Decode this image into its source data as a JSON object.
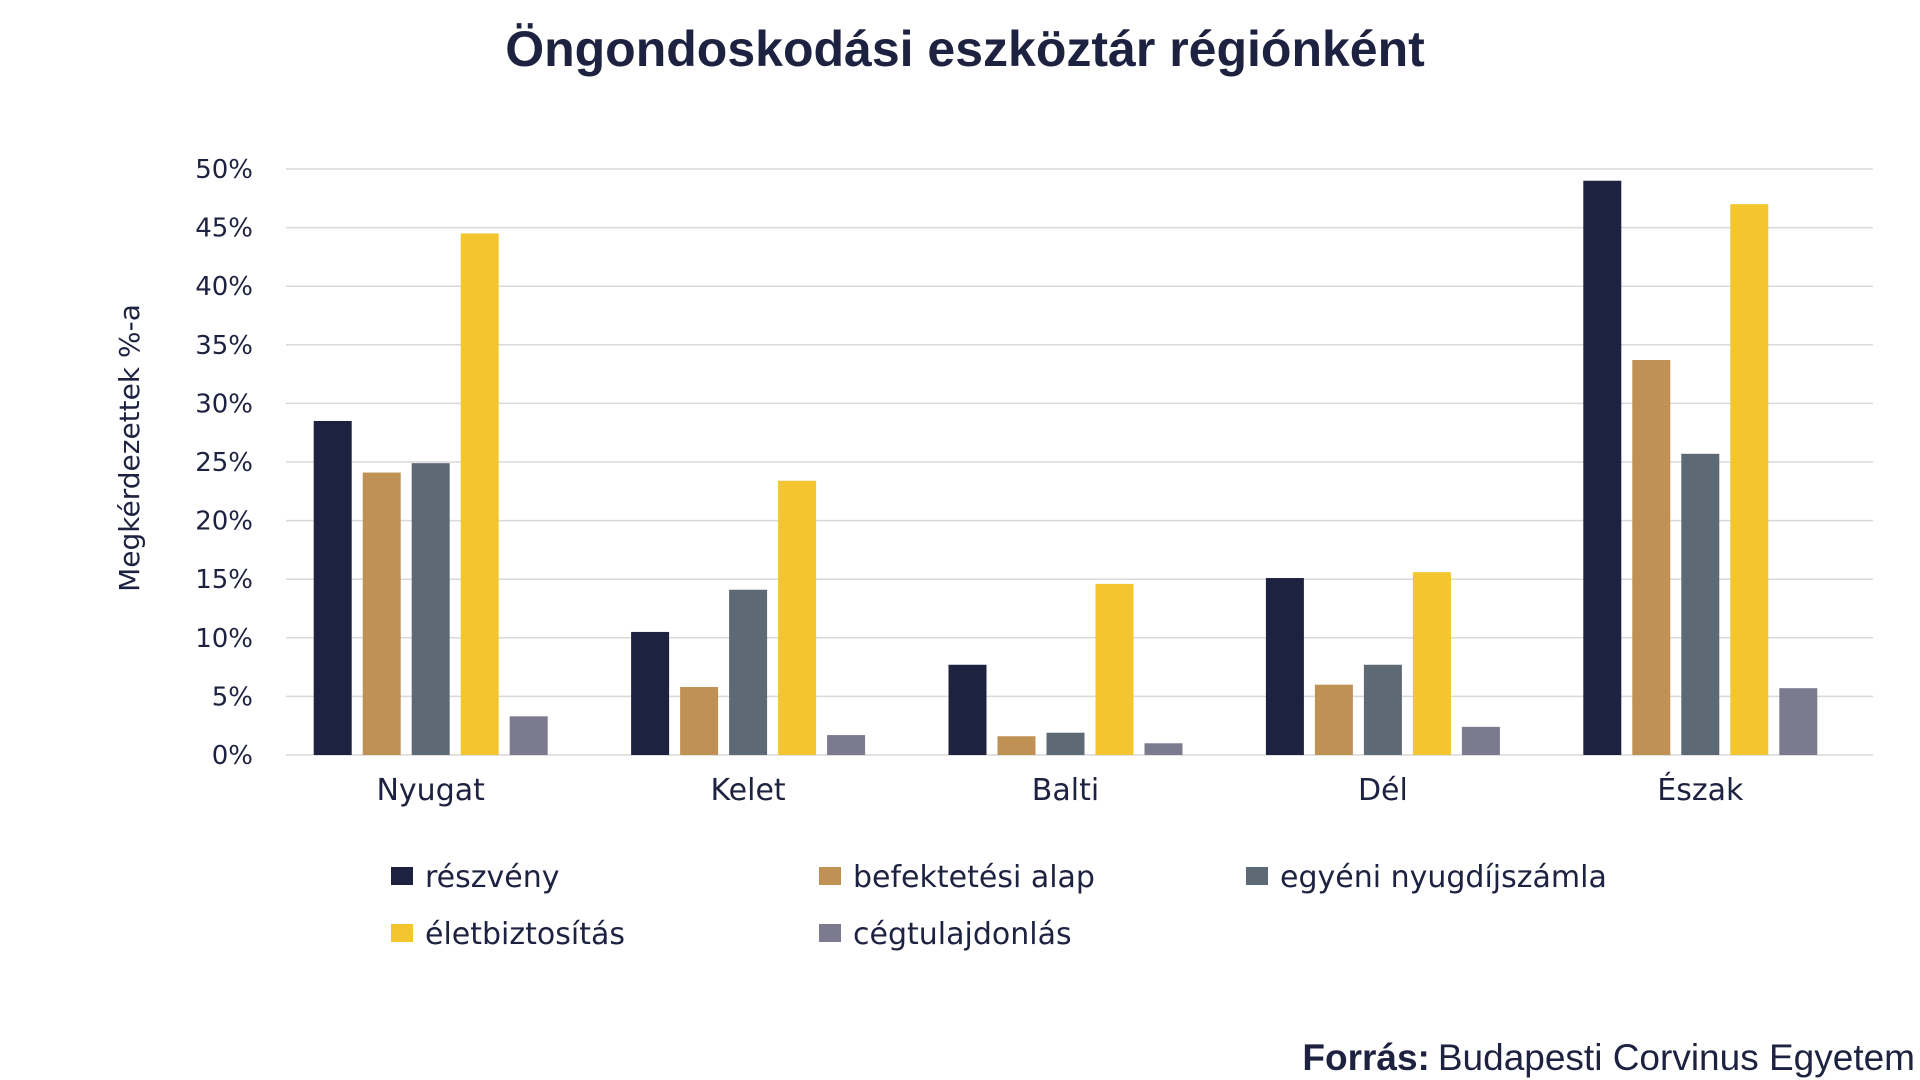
{
  "chart_data": {
    "type": "bar",
    "title": "Öngondoskodási eszköztár régiónként",
    "xlabel": "",
    "ylabel": "Megkérdezettek %-a",
    "ylim": [
      0,
      50
    ],
    "yticks": [
      0,
      5,
      10,
      15,
      20,
      25,
      30,
      35,
      40,
      45,
      50
    ],
    "ytick_labels": [
      "0%",
      "5%",
      "10%",
      "15%",
      "20%",
      "25%",
      "30%",
      "35%",
      "40%",
      "45%",
      "50%"
    ],
    "categories": [
      "Nyugat",
      "Kelet",
      "Balti",
      "Dél",
      "Észak"
    ],
    "series": [
      {
        "name": "részvény",
        "color": "#1e2241",
        "values": [
          28.5,
          10.5,
          7.7,
          15.1,
          49.0
        ]
      },
      {
        "name": "befektetési alap",
        "color": "#c09155",
        "values": [
          24.1,
          5.8,
          1.6,
          6.0,
          33.7
        ]
      },
      {
        "name": "egyéni nyugdíjszámla",
        "color": "#5d6975",
        "values": [
          24.9,
          14.1,
          1.9,
          7.7,
          25.7
        ]
      },
      {
        "name": "életbiztosítás",
        "color": "#f3c630",
        "values": [
          44.5,
          23.4,
          14.6,
          15.6,
          47.0
        ]
      },
      {
        "name": "cégtulajdonlás",
        "color": "#7c7a8f",
        "values": [
          3.3,
          1.7,
          1.0,
          2.4,
          5.7
        ]
      }
    ],
    "grid": true,
    "legend_position": "bottom"
  },
  "source": {
    "label": "Forrás:",
    "text": "Budapesti Corvinus Egyetem"
  }
}
